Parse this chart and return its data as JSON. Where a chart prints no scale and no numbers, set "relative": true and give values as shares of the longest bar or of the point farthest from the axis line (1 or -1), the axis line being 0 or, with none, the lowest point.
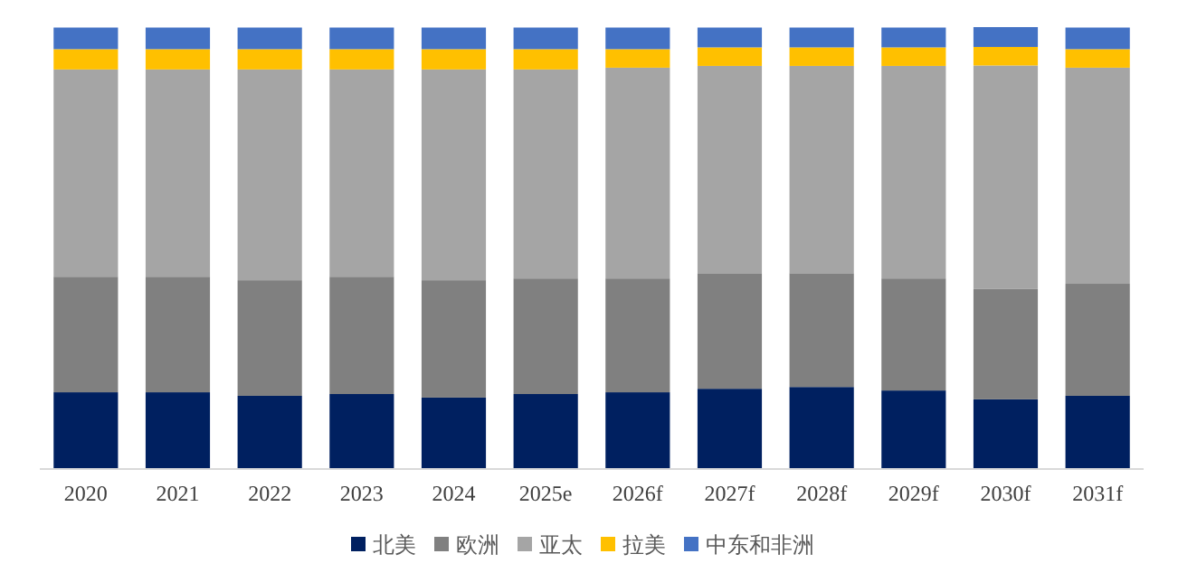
{
  "chart_data": {
    "type": "bar",
    "stacked": true,
    "relative": true,
    "legend": "bottom",
    "categories": [
      "2020",
      "2021",
      "2022",
      "2023",
      "2024",
      "2025e",
      "2026f",
      "2027f",
      "2028f",
      "2029f",
      "2030f",
      "2031f"
    ],
    "series": [
      {
        "name": "北美",
        "color": "#002060",
        "values": [
          0.172,
          0.172,
          0.164,
          0.168,
          0.16,
          0.168,
          0.172,
          0.18,
          0.184,
          0.176,
          0.156,
          0.164
        ]
      },
      {
        "name": "欧洲",
        "color": "#808080",
        "values": [
          0.262,
          0.262,
          0.262,
          0.266,
          0.266,
          0.262,
          0.258,
          0.262,
          0.258,
          0.254,
          0.25,
          0.254
        ]
      },
      {
        "name": "亚太",
        "color": "#a5a5a5",
        "values": [
          0.47,
          0.47,
          0.478,
          0.47,
          0.478,
          0.474,
          0.478,
          0.47,
          0.47,
          0.482,
          0.507,
          0.49
        ]
      },
      {
        "name": "拉美",
        "color": "#ffc000",
        "values": [
          0.046,
          0.046,
          0.046,
          0.046,
          0.046,
          0.046,
          0.042,
          0.042,
          0.042,
          0.042,
          0.042,
          0.042
        ]
      },
      {
        "name": "中东和非洲",
        "color": "#4472c4",
        "values": [
          0.049,
          0.049,
          0.049,
          0.049,
          0.049,
          0.049,
          0.049,
          0.045,
          0.045,
          0.045,
          0.045,
          0.049
        ]
      }
    ]
  }
}
